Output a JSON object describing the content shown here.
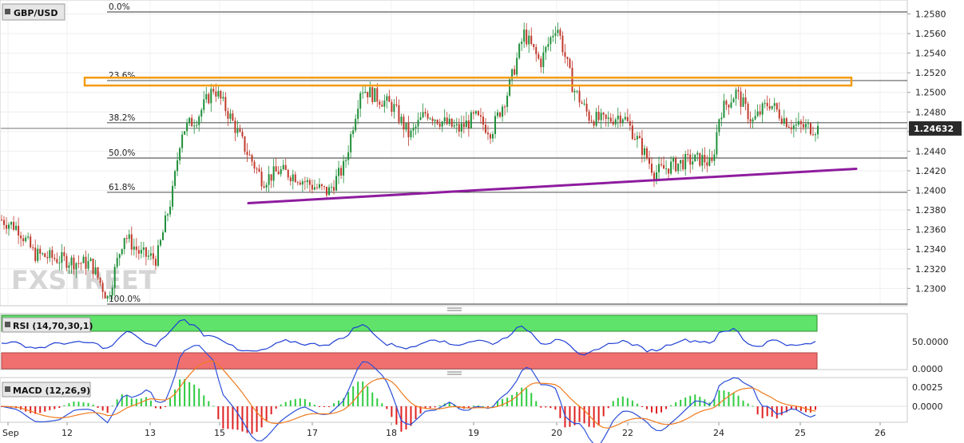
{
  "symbol": "GBP/USD",
  "watermark": {
    "fx": "FX",
    "street": "STREET"
  },
  "last_price": "1.24632",
  "price_axis": {
    "min": 1.2284,
    "max": 1.2582,
    "ticks": [
      "1.2580",
      "1.2560",
      "1.2540",
      "1.2520",
      "1.2500",
      "1.2480",
      "1.2460",
      "1.2440",
      "1.2420",
      "1.2400",
      "1.2380",
      "1.2360",
      "1.2340",
      "1.2320",
      "1.2300"
    ]
  },
  "time_axis": {
    "labels": [
      "Sep",
      "12",
      "13",
      "15",
      "17",
      "18",
      "19",
      "20",
      "22",
      "24",
      "25",
      "26"
    ]
  },
  "fibonacci": [
    {
      "label": "0.0%",
      "price": 1.2582
    },
    {
      "label": "23.6%",
      "price": 1.2512
    },
    {
      "label": "38.2%",
      "price": 1.2469
    },
    {
      "label": "50.0%",
      "price": 1.2433
    },
    {
      "label": "61.8%",
      "price": 1.2398
    },
    {
      "label": "100.0%",
      "price": 1.2284
    }
  ],
  "rsi": {
    "title": "RSI (14,70,30,1)",
    "ticks": [
      "50.0000",
      "0.0000"
    ]
  },
  "macd": {
    "title": "MACD (12,26,9)",
    "ticks": [
      "0.0025",
      "0.0000"
    ]
  },
  "colors": {
    "up": "#1f8f3a",
    "down": "#c0392b",
    "resistance_box": "#f39c12",
    "trendline": "#8e1c9e",
    "rsi_line": "#1f3fd6",
    "overbought": "#5fe36a",
    "oversold": "#f07070",
    "macd_line": "#2b4fd9",
    "signal_line": "#f07b1e",
    "hist_up": "#2ecc40",
    "hist_down": "#e02020"
  },
  "chart_data": {
    "type": "candlestick",
    "title": "GBP/USD",
    "ylim": [
      1.2284,
      1.2582
    ],
    "resistance_zone": [
      1.2507,
      1.2515
    ],
    "support_trendline": {
      "start": 1.2387,
      "end": 1.2422
    },
    "close_path": [
      [
        0,
        1.237
      ],
      [
        0.02,
        1.2362
      ],
      [
        0.04,
        1.2335
      ],
      [
        0.07,
        1.233
      ],
      [
        0.09,
        1.2327
      ],
      [
        0.11,
        1.2325
      ],
      [
        0.13,
        1.229
      ],
      [
        0.15,
        1.2355
      ],
      [
        0.17,
        1.2335
      ],
      [
        0.19,
        1.233
      ],
      [
        0.21,
        1.24
      ],
      [
        0.22,
        1.246
      ],
      [
        0.24,
        1.2475
      ],
      [
        0.26,
        1.2505
      ],
      [
        0.28,
        1.2475
      ],
      [
        0.3,
        1.244
      ],
      [
        0.32,
        1.241
      ],
      [
        0.34,
        1.242
      ],
      [
        0.36,
        1.2415
      ],
      [
        0.38,
        1.2405
      ],
      [
        0.4,
        1.2398
      ],
      [
        0.42,
        1.2425
      ],
      [
        0.44,
        1.2505
      ],
      [
        0.46,
        1.2495
      ],
      [
        0.48,
        1.2485
      ],
      [
        0.5,
        1.2455
      ],
      [
        0.52,
        1.248
      ],
      [
        0.54,
        1.247
      ],
      [
        0.56,
        1.2462
      ],
      [
        0.58,
        1.2475
      ],
      [
        0.6,
        1.246
      ],
      [
        0.62,
        1.25
      ],
      [
        0.64,
        1.256
      ],
      [
        0.66,
        1.253
      ],
      [
        0.68,
        1.257
      ],
      [
        0.7,
        1.2505
      ],
      [
        0.72,
        1.2475
      ],
      [
        0.74,
        1.247
      ],
      [
        0.76,
        1.2478
      ],
      [
        0.78,
        1.245
      ],
      [
        0.8,
        1.2418
      ],
      [
        0.82,
        1.2425
      ],
      [
        0.84,
        1.243
      ],
      [
        0.86,
        1.2432
      ],
      [
        0.87,
        1.2425
      ],
      [
        0.88,
        1.248
      ],
      [
        0.9,
        1.25
      ],
      [
        0.92,
        1.247
      ],
      [
        0.94,
        1.249
      ],
      [
        0.96,
        1.2472
      ],
      [
        0.97,
        1.2466
      ],
      [
        1.0,
        1.24632
      ]
    ]
  }
}
